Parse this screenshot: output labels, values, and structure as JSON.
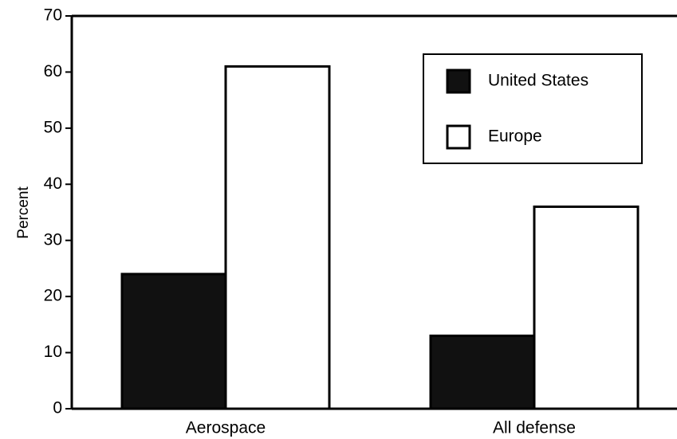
{
  "chart_data": {
    "type": "bar",
    "y_label": "Percent",
    "categories": [
      "Aerospace",
      "All defense"
    ],
    "series": [
      {
        "name": "United States",
        "color": "#111111",
        "values": [
          24,
          13
        ]
      },
      {
        "name": "Europe",
        "color": "#ffffff",
        "values": [
          61,
          36
        ]
      }
    ],
    "ylim": [
      0,
      70
    ],
    "yticks": [
      0,
      10,
      20,
      30,
      40,
      50,
      60,
      70
    ],
    "legend": "upper right"
  }
}
